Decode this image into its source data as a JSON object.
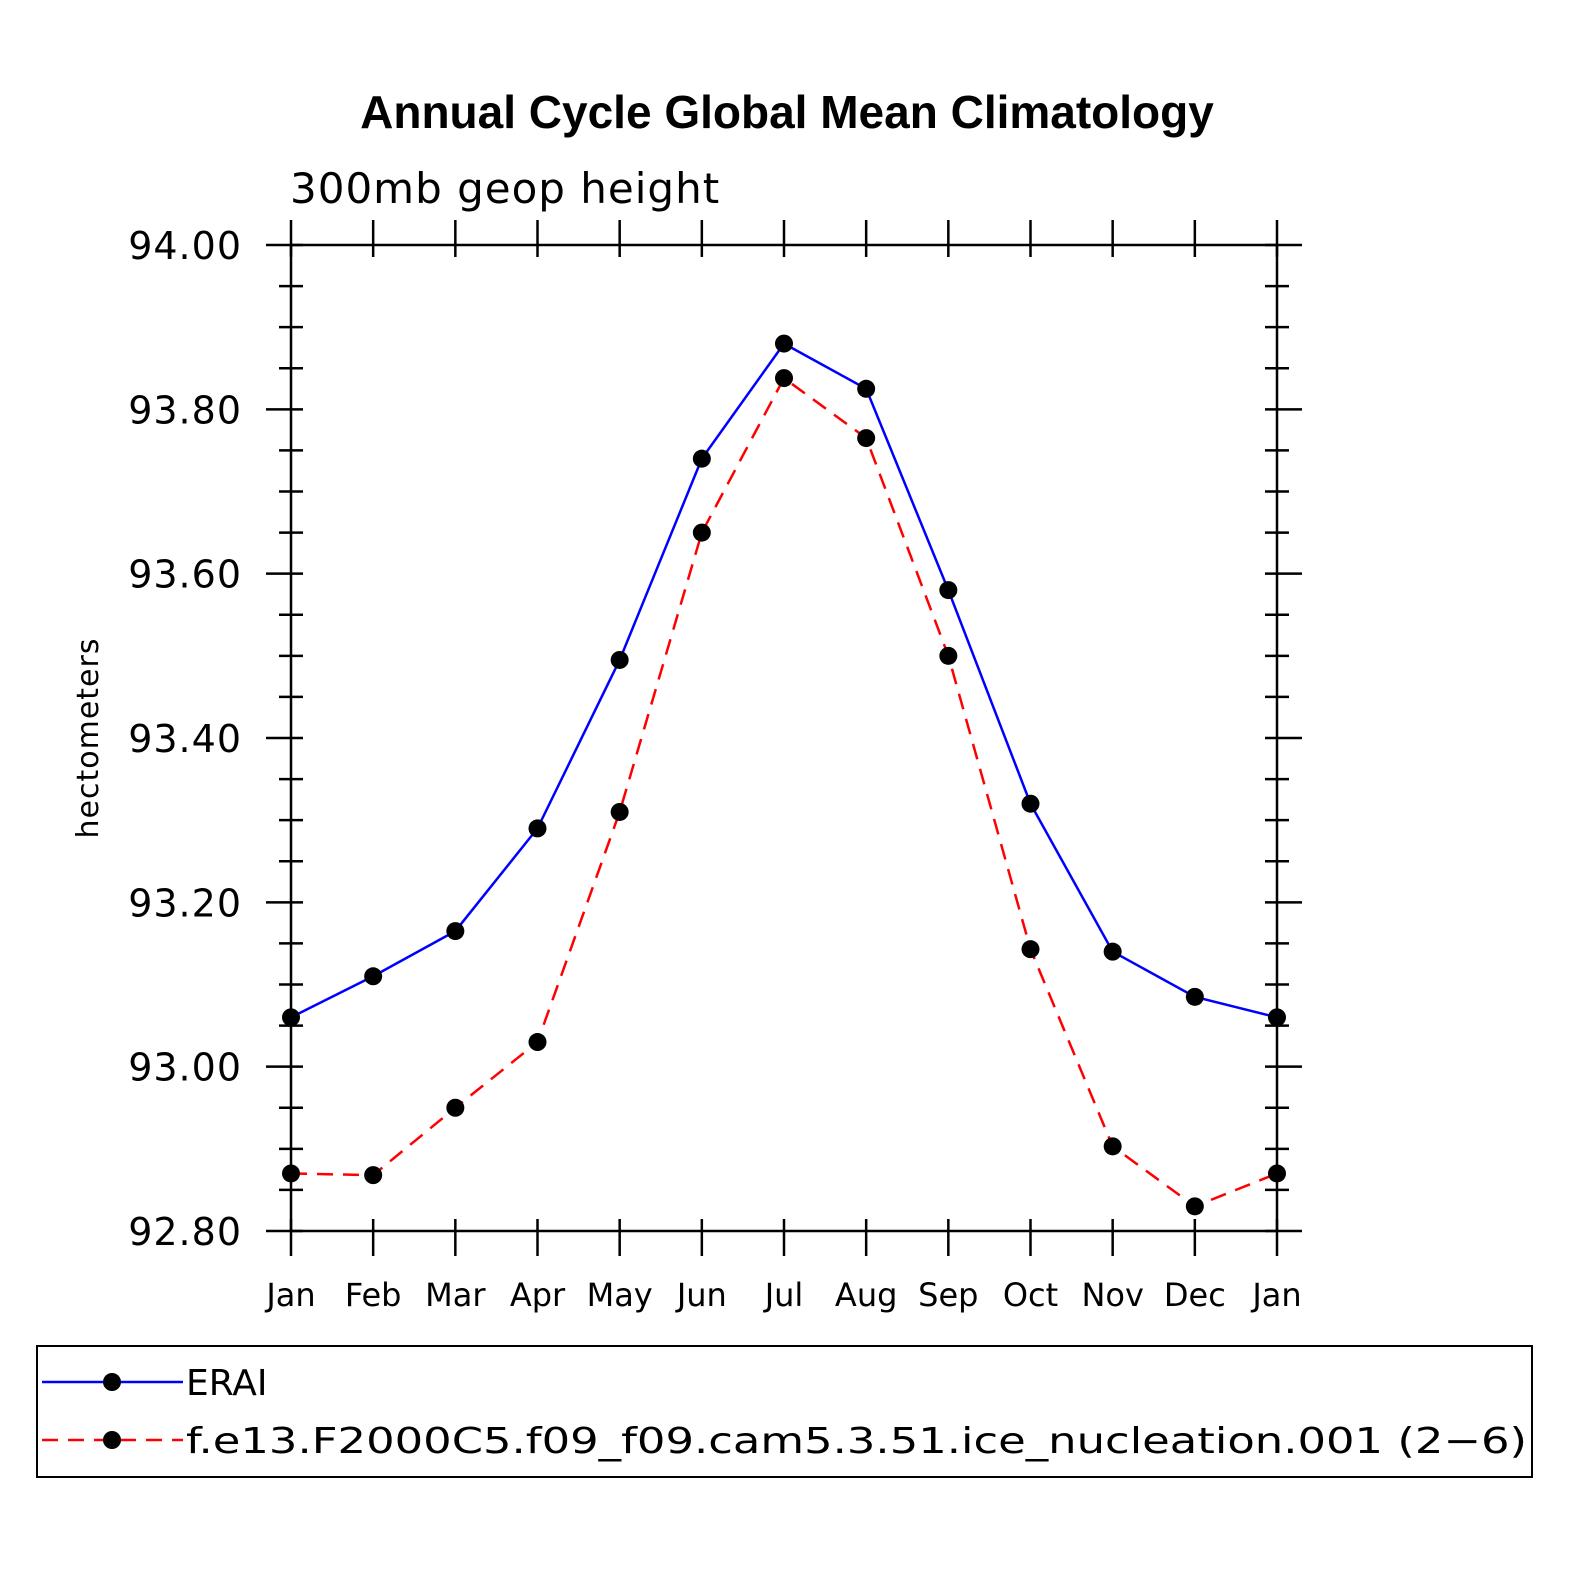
{
  "chart_data": {
    "type": "line",
    "title": "Annual Cycle Global Mean Climatology",
    "subtitle": "300mb geop height",
    "ylabel": "hectometers",
    "xlabel": "",
    "categories": [
      "Jan",
      "Feb",
      "Mar",
      "Apr",
      "May",
      "Jun",
      "Jul",
      "Aug",
      "Sep",
      "Oct",
      "Nov",
      "Dec",
      "Jan"
    ],
    "ylim": [
      92.8,
      94.0
    ],
    "yticks": [
      "92.80",
      "93.00",
      "93.20",
      "93.40",
      "93.60",
      "93.80",
      "94.00"
    ],
    "series": [
      {
        "name": "ERAI",
        "color": "#0000ff",
        "dash": "solid",
        "values": [
          93.06,
          93.11,
          93.165,
          93.29,
          93.495,
          93.74,
          93.88,
          93.825,
          93.58,
          93.32,
          93.14,
          93.085,
          93.06
        ]
      },
      {
        "name": "f.e13.F2000C5.f09_f09.cam5.3.51.ice_nucleation.001 (2−6)",
        "color": "#ff0000",
        "dash": "dashed",
        "values": [
          92.87,
          92.868,
          92.95,
          93.03,
          93.31,
          93.65,
          93.838,
          93.765,
          93.5,
          93.143,
          92.903,
          92.83,
          92.87
        ]
      }
    ],
    "grid": false,
    "legend": "bottom"
  }
}
